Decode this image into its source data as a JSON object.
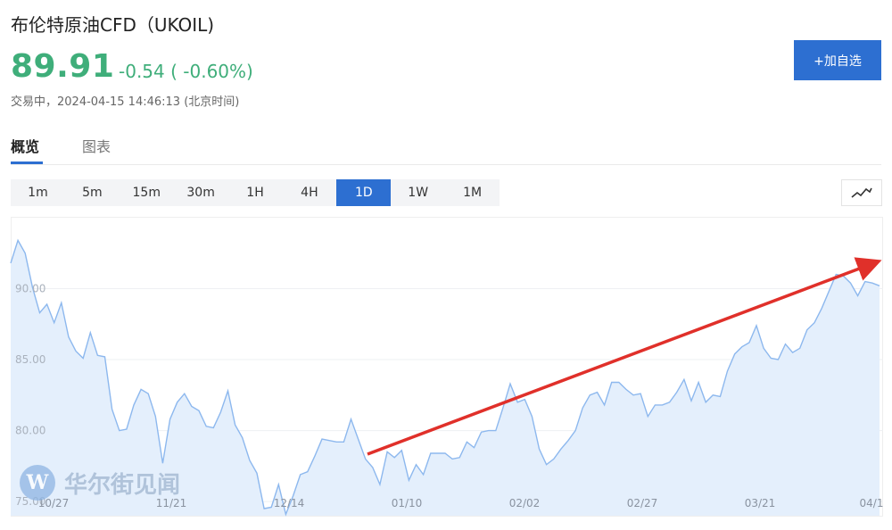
{
  "header": {
    "title": "布伦特原油CFD（UKOIL)",
    "price": "89.91",
    "change": "-0.54 ( -0.60%)",
    "status": "交易中，2024-04-15 14:46:13 (北京时间)",
    "add_button": "+加自选"
  },
  "tabs": [
    {
      "label": "概览",
      "active": true
    },
    {
      "label": "图表",
      "active": false
    }
  ],
  "intervals": [
    {
      "label": "1m",
      "active": false
    },
    {
      "label": "5m",
      "active": false
    },
    {
      "label": "15m",
      "active": false
    },
    {
      "label": "30m",
      "active": false
    },
    {
      "label": "1H",
      "active": false
    },
    {
      "label": "4H",
      "active": false
    },
    {
      "label": "1D",
      "active": true
    },
    {
      "label": "1W",
      "active": false
    },
    {
      "label": "1M",
      "active": false
    }
  ],
  "chart_type_icon": "line-chart-icon",
  "watermark": {
    "logo": "W",
    "text": "华尔街见闻"
  },
  "colors": {
    "up_green": "#3fae7a",
    "accent_blue": "#2d6fd1",
    "line": "#8db8ee",
    "area": "#e4effc",
    "arrow": "#e0302a"
  },
  "chart_data": {
    "type": "area",
    "x_ticks": [
      "10/27",
      "11/21",
      "12/14",
      "01/10",
      "02/02",
      "02/27",
      "03/21",
      "04/1"
    ],
    "y_ticks": [
      "75.00",
      "80.00",
      "85.00",
      "90.00"
    ],
    "ylim": [
      74,
      95
    ],
    "values": [
      91.8,
      93.4,
      92.5,
      90.1,
      88.3,
      88.9,
      87.6,
      89.0,
      86.6,
      85.6,
      85.1,
      86.9,
      85.3,
      85.2,
      81.5,
      80.0,
      80.1,
      81.8,
      82.9,
      82.6,
      81.0,
      77.7,
      80.8,
      82.0,
      82.6,
      81.7,
      81.4,
      80.3,
      80.2,
      81.3,
      82.8,
      80.4,
      79.5,
      77.9,
      77.0,
      74.5,
      74.6,
      76.2,
      74.1,
      75.4,
      76.9,
      77.1,
      78.2,
      79.4,
      79.3,
      79.2,
      79.2,
      80.8,
      79.4,
      78.0,
      77.4,
      76.2,
      78.5,
      78.1,
      78.6,
      76.5,
      77.6,
      76.9,
      78.4,
      78.4,
      78.4,
      78.0,
      78.1,
      79.2,
      78.8,
      79.9,
      80.0,
      80.0,
      81.6,
      83.3,
      82.0,
      82.2,
      81.0,
      78.7,
      77.6,
      78.0,
      78.7,
      79.3,
      80.0,
      81.6,
      82.5,
      82.7,
      81.8,
      83.4,
      83.4,
      82.9,
      82.5,
      82.6,
      81.0,
      81.8,
      81.8,
      82.0,
      82.7,
      83.6,
      82.1,
      83.4,
      82.0,
      82.5,
      82.4,
      84.2,
      85.4,
      85.9,
      86.2,
      87.4,
      85.8,
      85.1,
      85.0,
      86.1,
      85.5,
      85.8,
      87.1,
      87.6,
      88.6,
      89.8,
      91.0,
      90.9,
      90.4,
      89.5,
      90.5,
      90.4,
      90.2
    ],
    "annotation": "red trend arrow from 01/05 low (~76.0) to latest (~91.5)"
  }
}
